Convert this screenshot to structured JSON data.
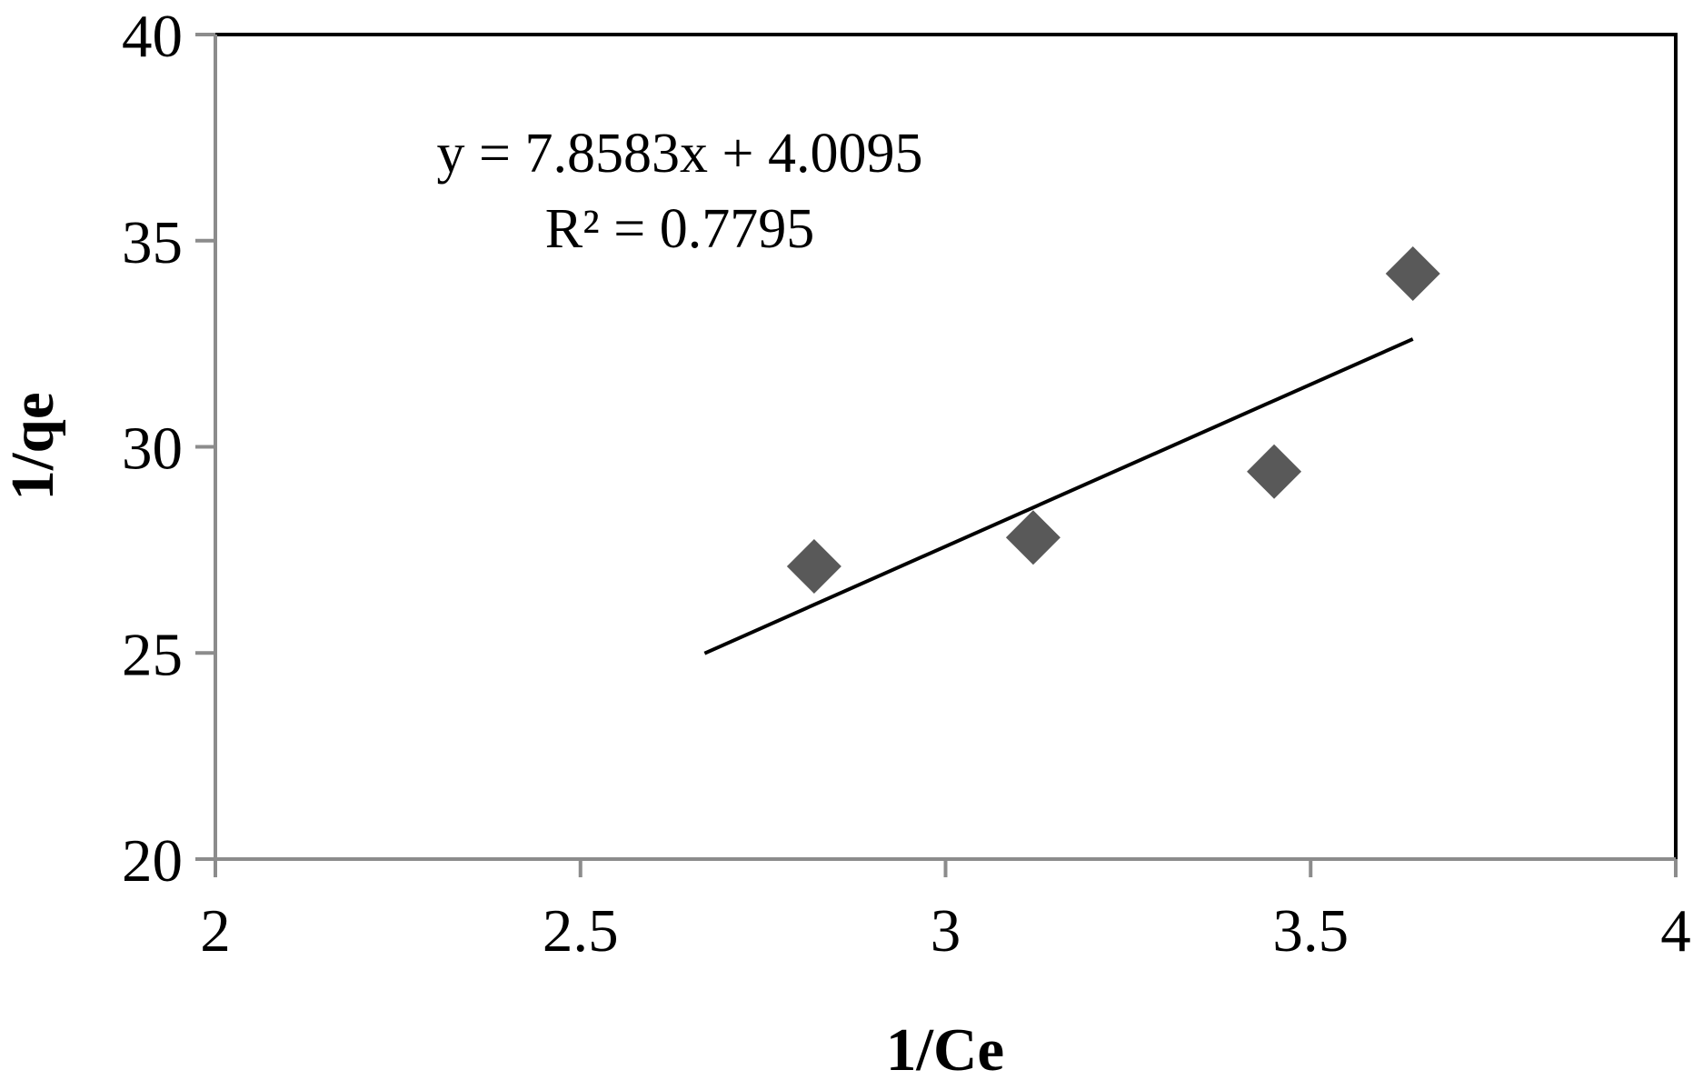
{
  "chart_data": {
    "type": "scatter",
    "xlabel": "1/Ce",
    "ylabel": "1/qe",
    "xlim": [
      2,
      4
    ],
    "ylim": [
      20,
      40
    ],
    "xticks": [
      "2",
      "2.5",
      "3",
      "3.5",
      "4"
    ],
    "yticks": [
      "20",
      "25",
      "30",
      "35",
      "40"
    ],
    "grid": false,
    "legend": "none",
    "series": [
      {
        "marker": "diamond",
        "color": "#595959",
        "points": [
          {
            "x": 2.82,
            "y": 27.1
          },
          {
            "x": 3.12,
            "y": 27.8
          },
          {
            "x": 3.45,
            "y": 29.4
          },
          {
            "x": 3.64,
            "y": 34.2
          }
        ]
      }
    ],
    "trendline": {
      "type": "linear",
      "slope": 7.8583,
      "intercept": 4.0095,
      "x_from": 2.67,
      "x_to": 3.64,
      "color": "#000000"
    },
    "annotations": {
      "equation": "y = 7.8583x + 4.0095",
      "r_squared": "R² = 0.7795"
    }
  }
}
